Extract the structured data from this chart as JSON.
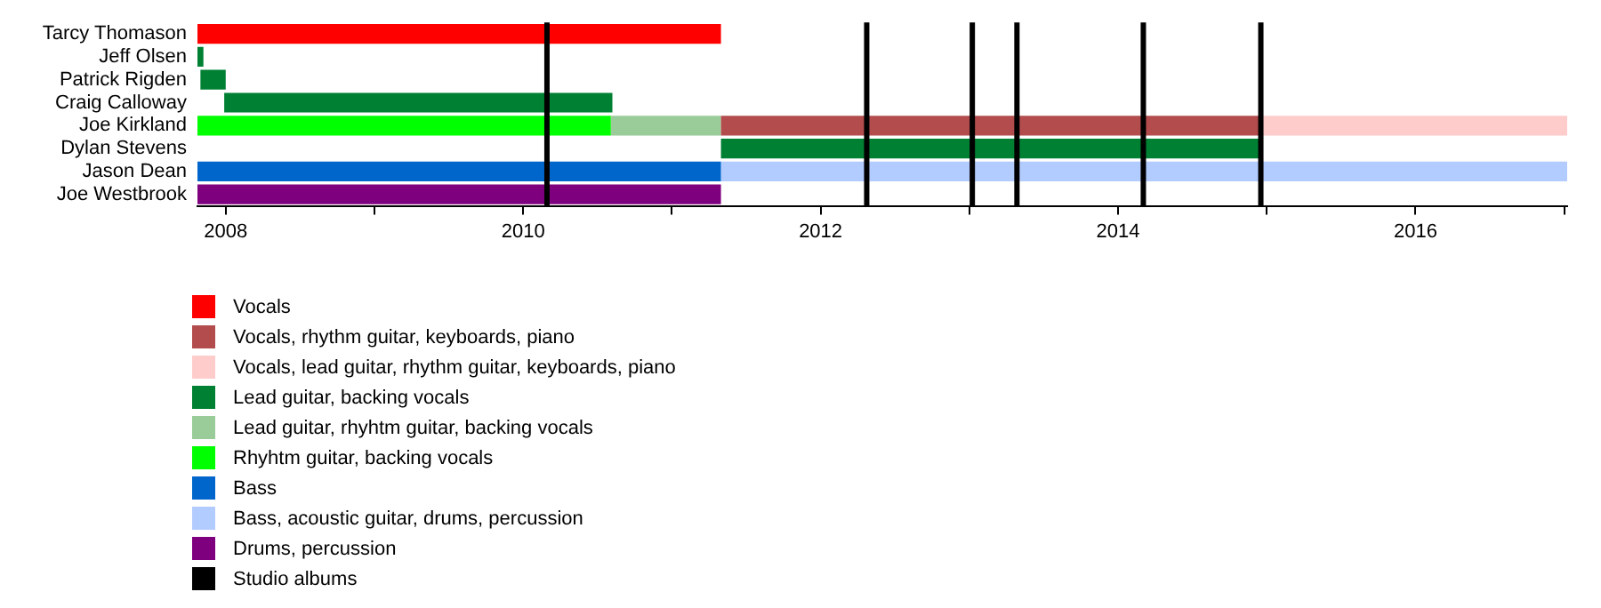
{
  "chart_data": {
    "type": "bar",
    "orientation": "horizontal",
    "categories": [
      "Tarcy Thomason",
      "Jeff Olsen",
      "Patrick Rigden",
      "Craig Calloway",
      "Joe Kirkland",
      "Dylan Stevens",
      "Jason Dean",
      "Joe Westbrook"
    ],
    "series": [
      {
        "name": "Vocals",
        "color": "#ff0000",
        "base": [
          2007.81,
          null,
          null,
          null,
          null,
          null,
          null,
          null
        ],
        "values": [
          3.52,
          null,
          null,
          null,
          null,
          null,
          null,
          null
        ]
      },
      {
        "name": "Vocals, rhythm guitar, keyboards, piano",
        "color": "#b34d4d",
        "base": [
          null,
          null,
          null,
          null,
          2011.33,
          null,
          null,
          null
        ],
        "values": [
          null,
          null,
          null,
          null,
          3.64,
          null,
          null,
          null
        ]
      },
      {
        "name": "Vocals, lead guitar, rhythm guitar, keyboards, piano",
        "color": "#ffcccc",
        "base": [
          null,
          null,
          null,
          null,
          2014.97,
          null,
          null,
          null
        ],
        "values": [
          null,
          null,
          null,
          null,
          2.05,
          null,
          null,
          null
        ]
      },
      {
        "name": "Lead guitar, backing vocals",
        "color": "#008033",
        "base": [
          null,
          2007.81,
          2007.83,
          2007.99,
          null,
          2011.33,
          null,
          null
        ],
        "values": [
          null,
          0.04,
          0.17,
          2.61,
          null,
          3.64,
          null,
          null
        ]
      },
      {
        "name": "Lead guitar, rhyhtm guitar, backing vocals",
        "color": "#99cc99",
        "base": [
          null,
          null,
          null,
          null,
          2010.59,
          null,
          null,
          null
        ],
        "values": [
          null,
          null,
          null,
          null,
          0.74,
          null,
          null,
          null
        ]
      },
      {
        "name": "Rhyhtm guitar, backing vocals",
        "color": "#00ff00",
        "base": [
          null,
          null,
          null,
          null,
          2007.81,
          null,
          null,
          null
        ],
        "values": [
          null,
          null,
          null,
          null,
          2.78,
          null,
          null,
          null
        ]
      },
      {
        "name": "Bass",
        "color": "#0066cc",
        "base": [
          null,
          null,
          null,
          null,
          null,
          null,
          2007.81,
          null
        ],
        "values": [
          null,
          null,
          null,
          null,
          null,
          null,
          3.52,
          null
        ]
      },
      {
        "name": "Bass, acoustic guitar, drums, percussion",
        "color": "#b3ccff",
        "base": [
          null,
          null,
          null,
          null,
          null,
          null,
          2011.33,
          null
        ],
        "values": [
          null,
          null,
          null,
          null,
          null,
          null,
          5.69,
          null
        ]
      },
      {
        "name": "Drums, percussion",
        "color": "#7f007f",
        "base": [
          null,
          null,
          null,
          null,
          null,
          null,
          null,
          2007.81
        ],
        "values": [
          null,
          null,
          null,
          null,
          null,
          null,
          null,
          3.52
        ]
      }
    ],
    "ref_lines": [
      {
        "axis": "x",
        "value": 2010.16,
        "label": "Studio albums",
        "color": "#000000"
      },
      {
        "axis": "x",
        "value": 2012.31,
        "color": "#000000"
      },
      {
        "axis": "x",
        "value": 2013.02,
        "color": "#000000"
      },
      {
        "axis": "x",
        "value": 2013.32,
        "color": "#000000"
      },
      {
        "axis": "x",
        "value": 2014.17,
        "color": "#000000"
      },
      {
        "axis": "x",
        "value": 2014.96,
        "color": "#000000"
      }
    ],
    "xlim": [
      2007.81,
      2017.02
    ],
    "xticks": [
      2008,
      {
        "value": 2009,
        "label": null
      },
      2010,
      {
        "value": 2011,
        "label": null
      },
      2012,
      {
        "value": 2013,
        "label": null
      },
      2014,
      {
        "value": 2015,
        "label": null
      },
      2016,
      {
        "value": 2017,
        "label": null
      }
    ],
    "grid": false,
    "legend": "bottom"
  }
}
